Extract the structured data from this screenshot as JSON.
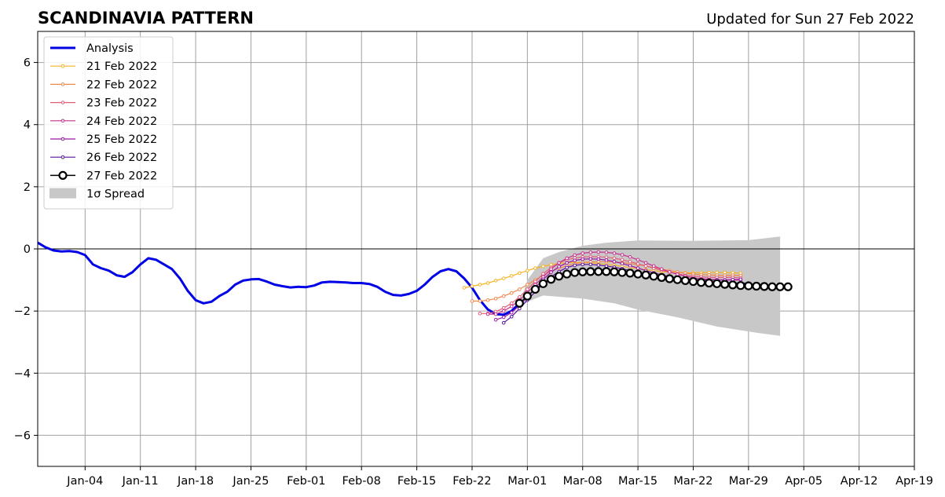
{
  "chart_data": {
    "type": "line",
    "title": "SCANDINAVIA PATTERN",
    "subtitle": "Updated for Sun 27 Feb 2022",
    "xlabel": "",
    "ylabel": "",
    "x_range": [
      "2021-12-29",
      "2022-04-19"
    ],
    "ylim": [
      -7,
      7
    ],
    "y_ticks": [
      -6,
      -4,
      -2,
      0,
      2,
      4,
      6
    ],
    "y_tick_labels": [
      "−6",
      "−4",
      "−2",
      "0",
      "2",
      "4",
      "6"
    ],
    "x_ticks": [
      "2022-01-04",
      "2022-01-11",
      "2022-01-18",
      "2022-01-25",
      "2022-02-01",
      "2022-02-08",
      "2022-02-15",
      "2022-02-22",
      "2022-03-01",
      "2022-03-08",
      "2022-03-15",
      "2022-03-22",
      "2022-03-29",
      "2022-04-05",
      "2022-04-12",
      "2022-04-19"
    ],
    "x_tick_labels": [
      "Jan-04",
      "Jan-11",
      "Jan-18",
      "Jan-25",
      "Feb-01",
      "Feb-08",
      "Feb-15",
      "Feb-22",
      "Mar-01",
      "Mar-08",
      "Mar-15",
      "Mar-22",
      "Mar-29",
      "Apr-05",
      "Apr-12",
      "Apr-19"
    ],
    "grid": true,
    "legend_position": "top-left",
    "spread": {
      "name": "1σ Spread",
      "color": "#c8c8c8",
      "upper": [
        [
          "2022-02-28",
          -1.8
        ],
        [
          "2022-03-01",
          -1.0
        ],
        [
          "2022-03-03",
          -0.3
        ],
        [
          "2022-03-05",
          -0.1
        ],
        [
          "2022-03-08",
          0.1
        ],
        [
          "2022-03-11",
          0.2
        ],
        [
          "2022-03-15",
          0.27
        ],
        [
          "2022-03-22",
          0.26
        ],
        [
          "2022-03-29",
          0.28
        ],
        [
          "2022-04-02",
          0.4
        ]
      ],
      "lower": [
        [
          "2022-02-28",
          -1.8
        ],
        [
          "2022-03-03",
          -1.5
        ],
        [
          "2022-03-08",
          -1.6
        ],
        [
          "2022-03-12",
          -1.75
        ],
        [
          "2022-03-15",
          -1.95
        ],
        [
          "2022-03-20",
          -2.2
        ],
        [
          "2022-03-25",
          -2.5
        ],
        [
          "2022-03-30",
          -2.7
        ],
        [
          "2022-04-02",
          -2.8
        ]
      ]
    },
    "series": [
      {
        "name": "Analysis",
        "color": "#0000e6",
        "style": "thick",
        "start": "2021-12-29",
        "step_days": 1,
        "values": [
          0.2,
          0.05,
          -0.05,
          -0.08,
          -0.07,
          -0.1,
          -0.2,
          -0.5,
          -0.62,
          -0.7,
          -0.85,
          -0.9,
          -0.75,
          -0.5,
          -0.3,
          -0.35,
          -0.5,
          -0.65,
          -0.95,
          -1.35,
          -1.65,
          -1.75,
          -1.7,
          -1.52,
          -1.38,
          -1.15,
          -1.02,
          -0.98,
          -0.97,
          -1.05,
          -1.15,
          -1.2,
          -1.24,
          -1.22,
          -1.23,
          -1.18,
          -1.08,
          -1.06,
          -1.07,
          -1.08,
          -1.1,
          -1.1,
          -1.13,
          -1.22,
          -1.38,
          -1.48,
          -1.5,
          -1.45,
          -1.35,
          -1.15,
          -0.9,
          -0.72,
          -0.65,
          -0.72,
          -0.95,
          -1.25,
          -1.65,
          -1.95,
          -2.1,
          -2.12,
          -2.0,
          -1.75
        ]
      },
      {
        "name": "21 Feb 2022",
        "color": "#f5b326",
        "style": "small",
        "start": "2022-02-21",
        "step_days": 1,
        "values": [
          -1.25,
          -1.2,
          -1.15,
          -1.1,
          -1.02,
          -0.95,
          -0.87,
          -0.78,
          -0.7,
          -0.62,
          -0.56,
          -0.51,
          -0.47,
          -0.45,
          -0.44,
          -0.44,
          -0.45,
          -0.47,
          -0.5,
          -0.53,
          -0.56,
          -0.6,
          -0.64,
          -0.67,
          -0.7,
          -0.73,
          -0.75,
          -0.76,
          -0.77,
          -0.77,
          -0.77,
          -0.76,
          -0.76,
          -0.76,
          -0.77,
          -0.78
        ]
      },
      {
        "name": "22 Feb 2022",
        "color": "#f0894a",
        "style": "small",
        "start": "2022-02-22",
        "step_days": 1,
        "values": [
          -1.68,
          -1.68,
          -1.65,
          -1.6,
          -1.52,
          -1.42,
          -1.3,
          -1.15,
          -1.0,
          -0.85,
          -0.72,
          -0.62,
          -0.54,
          -0.48,
          -0.44,
          -0.42,
          -0.41,
          -0.41,
          -0.42,
          -0.44,
          -0.47,
          -0.51,
          -0.55,
          -0.6,
          -0.65,
          -0.7,
          -0.74,
          -0.78,
          -0.81,
          -0.83,
          -0.84,
          -0.85,
          -0.85,
          -0.85,
          -0.86
        ]
      },
      {
        "name": "23 Feb 2022",
        "color": "#e0607a",
        "style": "small",
        "start": "2022-02-23",
        "step_days": 1,
        "values": [
          -2.08,
          -2.08,
          -2.02,
          -1.9,
          -1.75,
          -1.55,
          -1.3,
          -1.05,
          -0.8,
          -0.6,
          -0.45,
          -0.35,
          -0.29,
          -0.26,
          -0.25,
          -0.25,
          -0.27,
          -0.3,
          -0.35,
          -0.41,
          -0.48,
          -0.55,
          -0.62,
          -0.69,
          -0.75,
          -0.8,
          -0.85,
          -0.88,
          -0.9,
          -0.92,
          -0.92,
          -0.92,
          -0.92,
          -0.93
        ]
      },
      {
        "name": "24 Feb 2022",
        "color": "#c7308f",
        "style": "small",
        "start": "2022-02-24",
        "step_days": 1,
        "values": [
          -2.1,
          -2.1,
          -2.0,
          -1.85,
          -1.65,
          -1.4,
          -1.15,
          -0.9,
          -0.65,
          -0.45,
          -0.3,
          -0.2,
          -0.14,
          -0.11,
          -0.1,
          -0.11,
          -0.14,
          -0.19,
          -0.26,
          -0.35,
          -0.45,
          -0.55,
          -0.65,
          -0.74,
          -0.82,
          -0.88,
          -0.93,
          -0.96,
          -0.98,
          -0.99,
          -1.0,
          -1.0,
          -1.0
        ]
      },
      {
        "name": "25 Feb 2022",
        "color": "#9a17a8",
        "style": "small",
        "start": "2022-02-25",
        "step_days": 1,
        "values": [
          -2.28,
          -2.2,
          -2.05,
          -1.82,
          -1.55,
          -1.25,
          -0.98,
          -0.75,
          -0.57,
          -0.45,
          -0.37,
          -0.33,
          -0.32,
          -0.33,
          -0.36,
          -0.41,
          -0.47,
          -0.54,
          -0.62,
          -0.7,
          -0.77,
          -0.84,
          -0.89,
          -0.93,
          -0.96,
          -0.98,
          -0.99,
          -1.0,
          -1.0,
          -1.0,
          -0.99,
          -0.98
        ]
      },
      {
        "name": "26 Feb 2022",
        "color": "#5b10a0",
        "style": "small",
        "start": "2022-02-26",
        "step_days": 1,
        "values": [
          -2.38,
          -2.18,
          -1.92,
          -1.65,
          -1.38,
          -1.12,
          -0.9,
          -0.73,
          -0.6,
          -0.53,
          -0.5,
          -0.5,
          -0.52,
          -0.55,
          -0.59,
          -0.64,
          -0.7,
          -0.76,
          -0.82,
          -0.88,
          -0.93,
          -0.97,
          -1.0,
          -1.03,
          -1.05,
          -1.07,
          -1.08,
          -1.09,
          -1.1,
          -1.1,
          -1.1,
          -1.1
        ]
      },
      {
        "name": "27 Feb 2022",
        "color": "#000000",
        "style": "big",
        "start": "2022-02-28",
        "step_days": 1,
        "values": [
          -1.75,
          -1.52,
          -1.3,
          -1.12,
          -0.98,
          -0.88,
          -0.81,
          -0.76,
          -0.74,
          -0.73,
          -0.73,
          -0.73,
          -0.74,
          -0.76,
          -0.78,
          -0.81,
          -0.84,
          -0.88,
          -0.92,
          -0.96,
          -0.99,
          -1.02,
          -1.05,
          -1.08,
          -1.1,
          -1.12,
          -1.14,
          -1.16,
          -1.18,
          -1.19,
          -1.2,
          -1.21,
          -1.22,
          -1.22,
          -1.22
        ]
      }
    ]
  }
}
